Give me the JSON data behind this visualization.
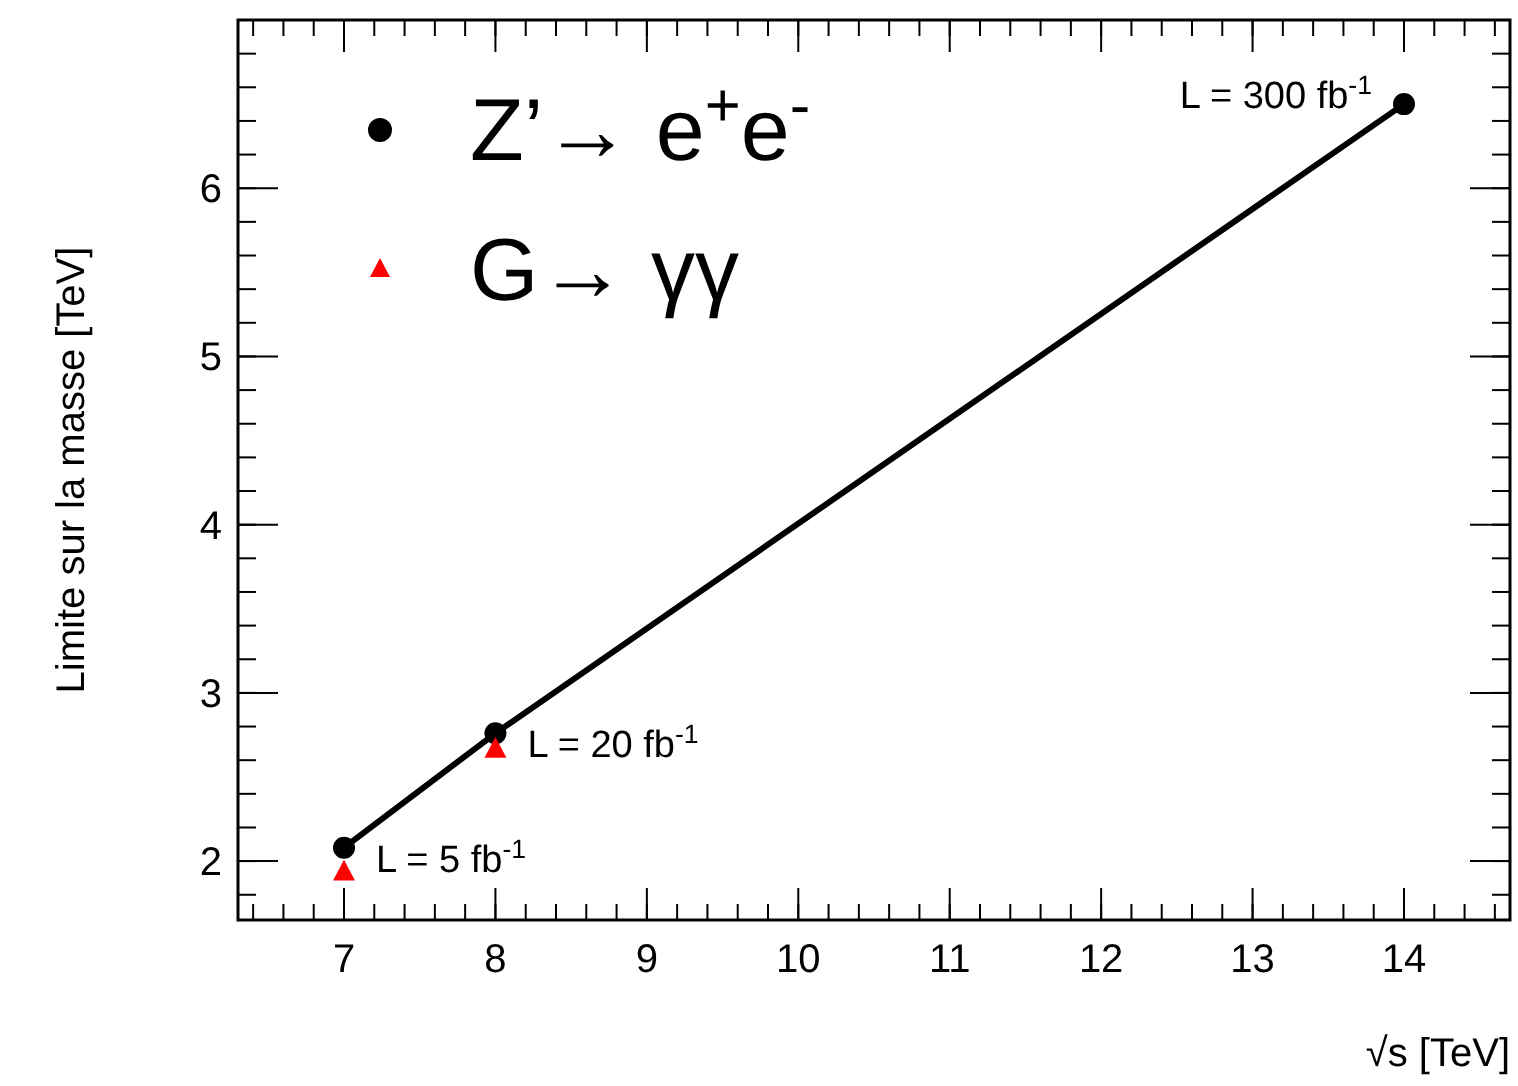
{
  "chart_data": {
    "type": "line",
    "xlabel": "√s [TeV]",
    "ylabel": "Limite sur la masse [TeV]",
    "xlim": [
      6.3,
      14.7
    ],
    "ylim": [
      1.65,
      7.0
    ],
    "xticks": [
      7,
      8,
      9,
      10,
      11,
      12,
      13,
      14
    ],
    "yticks": [
      2,
      3,
      4,
      5,
      6
    ],
    "grid": false,
    "legend": "top left",
    "series": [
      {
        "name": "Z’→ e$^{+}$e$^{-}$",
        "marker": "circle",
        "color": "#000000",
        "x": [
          7,
          8,
          14
        ],
        "values": [
          2.08,
          2.76,
          6.5
        ]
      },
      {
        "name": "G→ γγ",
        "type": "scatter",
        "marker": "triangle",
        "color": "#ff0000",
        "x": [
          7,
          8
        ],
        "values": [
          1.93,
          2.66
        ]
      }
    ],
    "annotations": [
      {
        "text": "L = 5 fb$^{-1}$",
        "x": 7,
        "y": 2.08
      },
      {
        "text": "L = 20 fb$^{-1}$",
        "x": 8,
        "y": 2.76
      },
      {
        "text": "L = 300 fb$^{-1}$",
        "x": 14,
        "y": 6.5
      }
    ]
  }
}
